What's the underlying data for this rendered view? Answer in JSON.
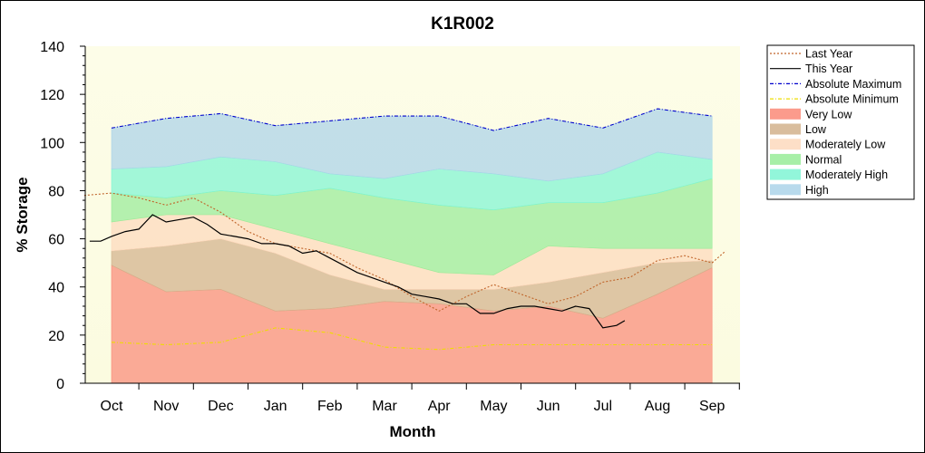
{
  "chart_data": {
    "type": "area",
    "title": "K1R002",
    "xlabel": "Month",
    "ylabel": "% Storage",
    "categories": [
      "Oct",
      "Nov",
      "Dec",
      "Jan",
      "Feb",
      "Mar",
      "Apr",
      "May",
      "Jun",
      "Jul",
      "Aug",
      "Sep"
    ],
    "ylim": [
      0,
      140
    ],
    "yticks": [
      0,
      20,
      40,
      60,
      80,
      100,
      120,
      140
    ],
    "legend_position": "right",
    "bands": [
      {
        "name": "Very Low",
        "color": "#fa8a78",
        "lower": [
          0,
          0,
          0,
          0,
          0,
          0,
          0,
          0,
          0,
          0,
          0,
          0
        ],
        "upper": [
          49,
          38,
          39,
          30,
          31,
          34,
          33,
          30,
          32,
          27,
          37,
          48
        ]
      },
      {
        "name": "Low",
        "color": "#d2b18c",
        "lower": [
          49,
          38,
          39,
          30,
          31,
          34,
          33,
          30,
          32,
          27,
          37,
          48
        ],
        "upper": [
          55,
          57,
          60,
          54,
          45,
          39,
          39,
          39,
          42,
          46,
          50,
          51
        ]
      },
      {
        "name": "Moderately Low",
        "color": "#fdd9bd",
        "lower": [
          55,
          57,
          60,
          54,
          45,
          39,
          39,
          39,
          42,
          46,
          50,
          51
        ],
        "upper": [
          67,
          70,
          70,
          64,
          58,
          52,
          46,
          45,
          57,
          56,
          56,
          56
        ]
      },
      {
        "name": "Normal",
        "color": "#98ec98",
        "lower": [
          67,
          70,
          70,
          64,
          58,
          52,
          46,
          45,
          57,
          56,
          56,
          56
        ],
        "upper": [
          79,
          77,
          80,
          78,
          81,
          77,
          74,
          72,
          75,
          75,
          79,
          85
        ]
      },
      {
        "name": "Moderately High",
        "color": "#7ff5d3",
        "lower": [
          79,
          77,
          80,
          78,
          81,
          77,
          74,
          72,
          75,
          75,
          79,
          85
        ],
        "upper": [
          89,
          90,
          94,
          92,
          87,
          85,
          89,
          87,
          84,
          87,
          96,
          93
        ]
      },
      {
        "name": "High",
        "color": "#abd3e9",
        "lower": [
          89,
          90,
          94,
          92,
          87,
          85,
          89,
          87,
          84,
          87,
          96,
          93
        ],
        "upper": [
          106,
          110,
          112,
          107,
          109,
          111,
          111,
          105,
          110,
          106,
          114,
          111
        ]
      }
    ],
    "series": [
      {
        "name": "Last Year",
        "color": "#c0642a",
        "style": "dotted",
        "x": [
          -0.5,
          0,
          0.5,
          1,
          1.5,
          2,
          2.5,
          3,
          3.5,
          4,
          4.5,
          5,
          5.5,
          6,
          6.5,
          7,
          7.5,
          8,
          8.5,
          9,
          9.5,
          10,
          10.5,
          11,
          11.25
        ],
        "y": [
          78,
          79,
          77,
          74,
          77,
          71,
          63,
          58,
          56,
          54,
          48,
          43,
          36,
          30,
          36,
          41,
          37,
          33,
          36,
          42,
          44,
          51,
          53,
          50,
          55
        ]
      },
      {
        "name": "This Year",
        "color": "#000000",
        "style": "solid",
        "x": [
          -0.4,
          -0.2,
          0,
          0.25,
          0.5,
          0.75,
          1,
          1.25,
          1.5,
          1.75,
          2,
          2.25,
          2.5,
          2.75,
          3,
          3.25,
          3.5,
          3.75,
          4,
          4.25,
          4.5,
          4.75,
          5,
          5.25,
          5.5,
          5.75,
          6,
          6.25,
          6.5,
          6.75,
          7,
          7.25,
          7.5,
          7.75,
          8,
          8.25,
          8.5,
          8.75,
          9,
          9.25,
          9.4
        ],
        "y": [
          59,
          59,
          61,
          63,
          64,
          70,
          67,
          68,
          69,
          66,
          62,
          61,
          60,
          58,
          58,
          57,
          54,
          55,
          52,
          49,
          46,
          44,
          42,
          40,
          37,
          36,
          35,
          33,
          33,
          29,
          29,
          31,
          32,
          32,
          31,
          30,
          32,
          31,
          23,
          24,
          26
        ]
      },
      {
        "name": "Absolute Maximum",
        "color": "#0000cc",
        "style": "dashdot",
        "x": [
          0,
          1,
          2,
          3,
          4,
          5,
          6,
          7,
          8,
          9,
          10,
          11
        ],
        "y": [
          106,
          110,
          112,
          107,
          109,
          111,
          111,
          105,
          110,
          106,
          114,
          111
        ]
      },
      {
        "name": "Absolute Minimum",
        "color": "#eedd00",
        "style": "dashdot",
        "x": [
          0,
          1,
          2,
          3,
          4,
          5,
          6,
          7,
          8,
          9,
          10,
          11
        ],
        "y": [
          17,
          16,
          17,
          23,
          21,
          15,
          14,
          16,
          16,
          16,
          16,
          16
        ]
      }
    ],
    "legend": [
      {
        "label": "Last Year",
        "kind": "line",
        "color": "#c0642a",
        "dash": "2,2"
      },
      {
        "label": "This Year",
        "kind": "line",
        "color": "#000000",
        "dash": ""
      },
      {
        "label": "Absolute Maximum",
        "kind": "line",
        "color": "#0000cc",
        "dash": "4,2,1,2"
      },
      {
        "label": "Absolute Minimum",
        "kind": "line",
        "color": "#eedd00",
        "dash": "4,2,1,2"
      },
      {
        "label": "Very Low",
        "kind": "band",
        "color": "#fa8a78"
      },
      {
        "label": "Low",
        "kind": "band",
        "color": "#d2b18c"
      },
      {
        "label": "Moderately Low",
        "kind": "band",
        "color": "#fdd9bd"
      },
      {
        "label": "Normal",
        "kind": "band",
        "color": "#98ec98"
      },
      {
        "label": "Moderately High",
        "kind": "band",
        "color": "#7ff5d3"
      },
      {
        "label": "High",
        "kind": "band",
        "color": "#abd3e9"
      }
    ]
  }
}
